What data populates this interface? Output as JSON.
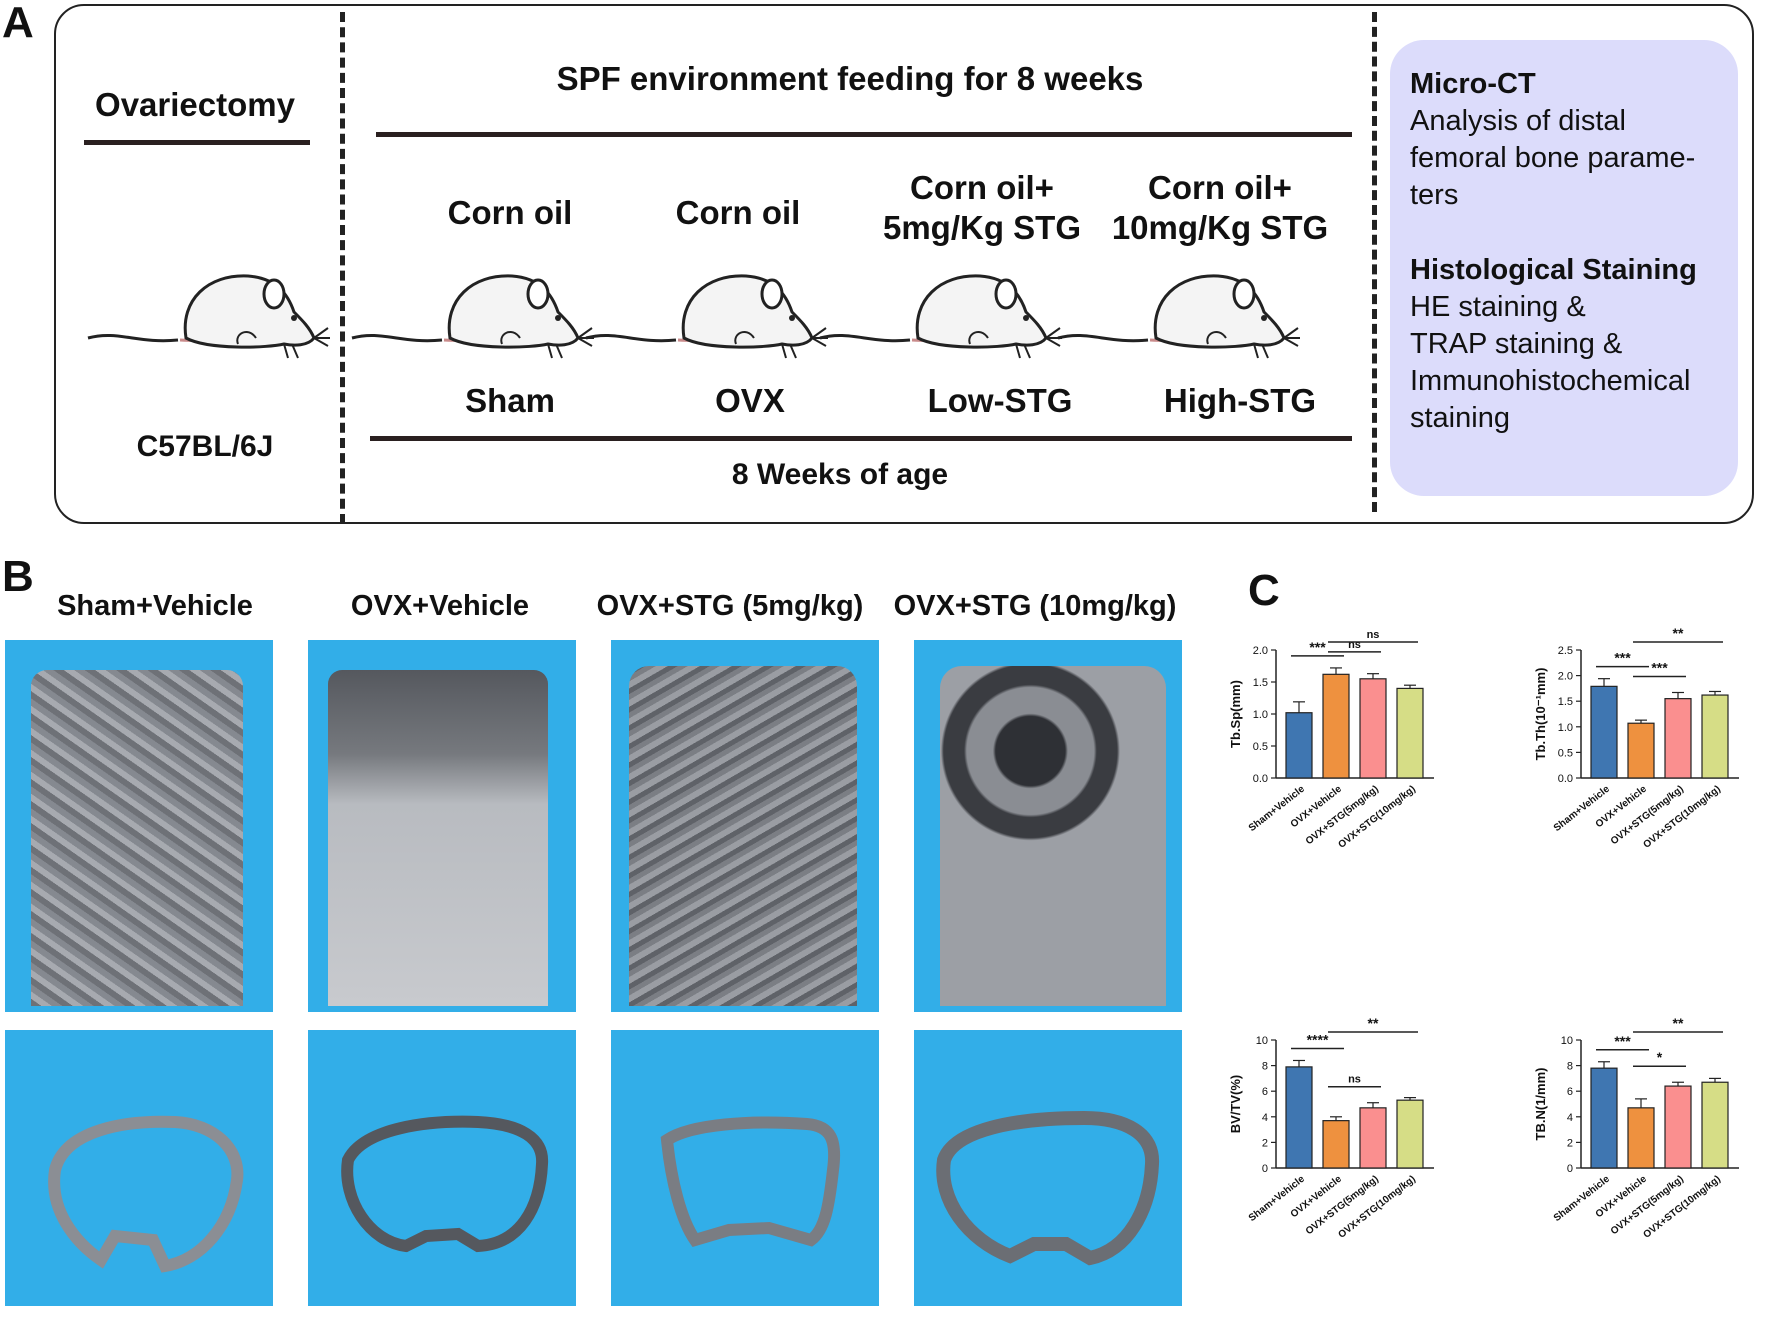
{
  "panel_labels": {
    "a": "A",
    "b": "B",
    "c": "C"
  },
  "scheme": {
    "ovariectomy": "Ovariectomy",
    "strain": "C57BL/6J",
    "feeding": "SPF environment feeding for 8 weeks",
    "age": "8 Weeks of age",
    "treatments": [
      {
        "line1": "Corn oil",
        "line2": ""
      },
      {
        "line1": "Corn oil",
        "line2": ""
      },
      {
        "line1": "Corn oil+",
        "line2": "5mg/Kg STG"
      },
      {
        "line1": "Corn oil+",
        "line2": "10mg/Kg STG"
      }
    ],
    "groups": [
      "Sham",
      "OVX",
      "Low-STG",
      "High-STG"
    ],
    "analysis": {
      "microct_title": "Micro-CT",
      "microct_lines": [
        "Analysis of distal",
        "femoral bone parame-",
        "ters"
      ],
      "histo_title": "Histological Staining",
      "histo_lines": [
        "HE staining &",
        "TRAP staining &",
        "Immunohistochemical",
        "staining"
      ]
    },
    "colors": {
      "info_box": "#dcdcfb"
    }
  },
  "panel_b": {
    "headers": [
      "Sham+Vehicle",
      "OVX+Vehicle",
      "OVX+STG (5mg/kg)",
      "OVX+STG (10mg/kg)"
    ],
    "background_color": "#32aee8"
  },
  "chart_data": [
    {
      "type": "bar",
      "ylabel": "Tb.Sp(mm)",
      "ylim": [
        0,
        2.0
      ],
      "yticks": [
        "0.0",
        "0.5",
        "1.0",
        "1.5",
        "2.0"
      ],
      "categories": [
        "Sham+Vehicle",
        "OVX+Vehicle",
        "OVX+STG(5mg/kg)",
        "OVX+STG(10mg/kg)"
      ],
      "values": [
        1.02,
        1.62,
        1.55,
        1.4
      ],
      "errors": [
        0.17,
        0.1,
        0.08,
        0.05
      ],
      "colors": [
        "#3f76b1",
        "#ee913f",
        "#fa8f8f",
        "#d6dd86"
      ],
      "significance": [
        {
          "from": 0,
          "to": 1,
          "label": "***"
        },
        {
          "from": 1,
          "to": 2,
          "label": "ns"
        },
        {
          "from": 1,
          "to": 3,
          "label": "ns"
        }
      ]
    },
    {
      "type": "bar",
      "ylabel": "Tb.Th(10⁻¹mm)",
      "ylim": [
        0,
        2.5
      ],
      "yticks": [
        "0.0",
        "0.5",
        "1.0",
        "1.5",
        "2.0",
        "2.5"
      ],
      "categories": [
        "Sham+Vehicle",
        "OVX+Vehicle",
        "OVX+STG(5mg/kg)",
        "OVX+STG(10mg/kg)"
      ],
      "values": [
        1.79,
        1.07,
        1.55,
        1.62
      ],
      "errors": [
        0.15,
        0.06,
        0.12,
        0.07
      ],
      "colors": [
        "#3f76b1",
        "#ee913f",
        "#fa8f8f",
        "#d6dd86"
      ],
      "significance": [
        {
          "from": 0,
          "to": 1,
          "label": "***"
        },
        {
          "from": 1,
          "to": 2,
          "label": "***"
        },
        {
          "from": 1,
          "to": 3,
          "label": "**"
        }
      ]
    },
    {
      "type": "bar",
      "ylabel": "BV/TV(%)",
      "ylim": [
        0,
        10
      ],
      "yticks": [
        "0",
        "2",
        "4",
        "6",
        "8",
        "10"
      ],
      "categories": [
        "Sham+Vehicle",
        "OVX+Vehicle",
        "OVX+STG(5mg/kg)",
        "OVX+STG(10mg/kg)"
      ],
      "values": [
        7.9,
        3.7,
        4.7,
        5.3
      ],
      "errors": [
        0.5,
        0.3,
        0.4,
        0.2
      ],
      "colors": [
        "#3f76b1",
        "#ee913f",
        "#fa8f8f",
        "#d6dd86"
      ],
      "significance": [
        {
          "from": 0,
          "to": 1,
          "label": "****"
        },
        {
          "from": 1,
          "to": 2,
          "label": "ns"
        },
        {
          "from": 1,
          "to": 3,
          "label": "**"
        }
      ]
    },
    {
      "type": "bar",
      "ylabel": "TB.N(1/mm)",
      "ylim": [
        0,
        10
      ],
      "yticks": [
        "0",
        "2",
        "4",
        "6",
        "8",
        "10"
      ],
      "categories": [
        "Sham+Vehicle",
        "OVX+Vehicle",
        "OVX+STG(5mg/kg)",
        "OVX+STG(10mg/kg)"
      ],
      "values": [
        7.8,
        4.7,
        6.4,
        6.7
      ],
      "errors": [
        0.5,
        0.7,
        0.3,
        0.3
      ],
      "colors": [
        "#3f76b1",
        "#ee913f",
        "#fa8f8f",
        "#d6dd86"
      ],
      "significance": [
        {
          "from": 0,
          "to": 1,
          "label": "***"
        },
        {
          "from": 1,
          "to": 2,
          "label": "*"
        },
        {
          "from": 1,
          "to": 3,
          "label": "**"
        }
      ]
    }
  ]
}
